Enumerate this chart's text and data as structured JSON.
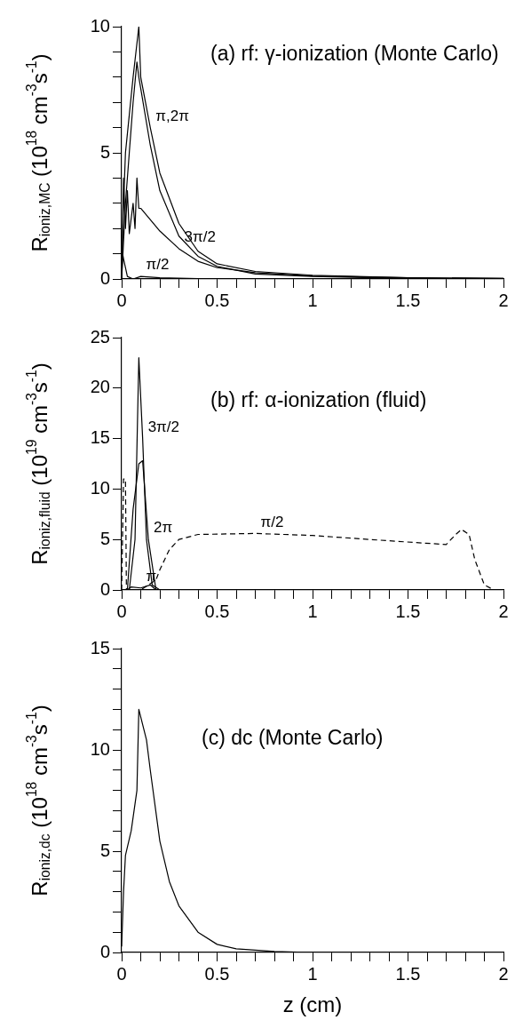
{
  "chart_data": [
    {
      "type": "line",
      "title": "(a) rf: γ-ionization (Monte Carlo)",
      "ylabel": "R$_{ioniz,MC}$ (10$^{18}$ cm$^{-3}$s$^{-1}$)",
      "marker": "none",
      "line_style": "solid",
      "xlim": [
        0,
        2
      ],
      "xticks": [
        0,
        {
          "value": 0.1,
          "label": null
        },
        {
          "value": 0.2,
          "label": null
        },
        {
          "value": 0.3,
          "label": null
        },
        {
          "value": 0.4,
          "label": null
        },
        0.5,
        {
          "value": 0.6,
          "label": null
        },
        {
          "value": 0.7,
          "label": null
        },
        {
          "value": 0.8,
          "label": null
        },
        {
          "value": 0.9,
          "label": null
        },
        1,
        {
          "value": 1.1,
          "label": null
        },
        {
          "value": 1.2,
          "label": null
        },
        {
          "value": 1.3,
          "label": null
        },
        {
          "value": 1.4,
          "label": null
        },
        1.5,
        {
          "value": 1.6,
          "label": null
        },
        {
          "value": 1.7,
          "label": null
        },
        {
          "value": 1.8,
          "label": null
        },
        {
          "value": 1.9,
          "label": null
        },
        2
      ],
      "ylim": [
        0,
        10
      ],
      "yticks": [
        0,
        {
          "value": 1,
          "label": null
        },
        {
          "value": 2,
          "label": null
        },
        {
          "value": 3,
          "label": null
        },
        {
          "value": 4,
          "label": null
        },
        5,
        {
          "value": 6,
          "label": null
        },
        {
          "value": 7,
          "label": null
        },
        {
          "value": 8,
          "label": null
        },
        {
          "value": 9,
          "label": null
        },
        10
      ],
      "series": [
        {
          "color": "#000000",
          "x": [
            0,
            0.01,
            0.02,
            0.04,
            0.06,
            0.09,
            0.1,
            0.15,
            0.2,
            0.3,
            0.4,
            0.5,
            0.7,
            1,
            1.5,
            2
          ],
          "values": [
            0,
            3,
            5,
            6.5,
            8,
            10,
            8,
            6,
            4.2,
            2.2,
            1.1,
            0.6,
            0.3,
            0.15,
            0.05,
            0.02
          ]
        },
        {
          "color": "#000000",
          "x": [
            0,
            0.02,
            0.04,
            0.06,
            0.08,
            0.09,
            0.15,
            0.2,
            0.3,
            0.4,
            0.5,
            0.7,
            1,
            1.5,
            2
          ],
          "values": [
            0,
            3,
            5,
            7,
            8.6,
            8,
            5.3,
            3.5,
            1.7,
            0.9,
            0.5,
            0.2,
            0.1,
            0.02,
            0
          ]
        },
        {
          "color": "#000000",
          "x": [
            0,
            0.01,
            0.02,
            0.03,
            0.04,
            0.06,
            0.07,
            0.08,
            0.09,
            0.1,
            0.2,
            0.3,
            0.4,
            0.5,
            0.7,
            1,
            1.5,
            2
          ],
          "values": [
            0,
            4,
            2,
            3.5,
            1.8,
            3,
            2,
            4,
            2.8,
            2.8,
            1.9,
            1.2,
            0.7,
            0.45,
            0.25,
            0.12,
            0.05,
            0.02
          ]
        },
        {
          "color": "#000000",
          "x": [
            0,
            0.005,
            0.01,
            0.03,
            0.06,
            0.1,
            0.2,
            0.5
          ],
          "values": [
            0,
            1,
            0.8,
            0.1,
            0,
            0.1,
            0.05,
            0
          ]
        }
      ],
      "annotations": [
        {
          "text": "π,2π",
          "x": 0.15,
          "y": 6
        },
        {
          "text": "3π/2",
          "x": 0.3,
          "y": 1.2
        },
        {
          "text": "π/2",
          "x": 0.1,
          "y": 0.1
        }
      ]
    },
    {
      "type": "line",
      "title": "(b) rf: α-ionization (fluid)",
      "ylabel": "R$_{ioniz,fluid}$ (10$^{19}$ cm$^{-3}$s$^{-1}$)",
      "marker": "none",
      "xlim": [
        0,
        2
      ],
      "xticks": [
        0,
        {
          "value": 0.1,
          "label": null
        },
        {
          "value": 0.2,
          "label": null
        },
        {
          "value": 0.3,
          "label": null
        },
        {
          "value": 0.4,
          "label": null
        },
        0.5,
        {
          "value": 0.6,
          "label": null
        },
        {
          "value": 0.7,
          "label": null
        },
        {
          "value": 0.8,
          "label": null
        },
        {
          "value": 0.9,
          "label": null
        },
        1,
        {
          "value": 1.1,
          "label": null
        },
        {
          "value": 1.2,
          "label": null
        },
        {
          "value": 1.3,
          "label": null
        },
        {
          "value": 1.4,
          "label": null
        },
        1.5,
        {
          "value": 1.6,
          "label": null
        },
        {
          "value": 1.7,
          "label": null
        },
        {
          "value": 1.8,
          "label": null
        },
        {
          "value": 1.9,
          "label": null
        },
        2
      ],
      "ylim": [
        0,
        25
      ],
      "yticks": [
        0,
        5,
        10,
        15,
        20,
        25
      ],
      "series": [
        {
          "color": "#000000",
          "line_style": "solid",
          "x": [
            0,
            0.04,
            0.07,
            0.09,
            0.11,
            0.13,
            0.16,
            0.2
          ],
          "values": [
            0,
            0,
            5,
            23,
            15,
            5,
            0.5,
            0
          ]
        },
        {
          "color": "#000000",
          "line_style": "solid",
          "x": [
            0.03,
            0.06,
            0.09,
            0.11,
            0.14,
            0.18
          ],
          "values": [
            0,
            8,
            12.5,
            12.8,
            5,
            0
          ]
        },
        {
          "color": "#000000",
          "line_style": "dashed",
          "x": [
            0,
            0.01,
            0.02,
            0.025,
            0.1,
            0.18,
            0.2,
            0.25,
            0.3,
            0.4,
            0.7,
            1,
            1.3,
            1.7,
            1.75,
            1.78,
            1.82,
            1.85,
            1.9,
            1.95
          ],
          "values": [
            0,
            11,
            11,
            0,
            0,
            1,
            2,
            4,
            5,
            5.5,
            5.6,
            5.4,
            5,
            4.5,
            5.5,
            6,
            5.5,
            3,
            0.5,
            0
          ]
        },
        {
          "color": "#000000",
          "line_style": "solid",
          "x": [
            0.03,
            0.05,
            0.1,
            0.15,
            0.18
          ],
          "values": [
            0,
            0.3,
            0.2,
            0.5,
            0
          ]
        }
      ],
      "annotations": [
        {
          "text": "3π/2",
          "x": 0.11,
          "y": 15
        },
        {
          "text": "2π",
          "x": 0.14,
          "y": 5
        },
        {
          "text": "π/2",
          "x": 0.7,
          "y": 5.6
        },
        {
          "text": "π",
          "x": 0.1,
          "y": 0.2
        }
      ]
    },
    {
      "type": "line",
      "title": "(c) dc (Monte Carlo)",
      "xlabel": "z (cm)",
      "ylabel": "R$_{ioniz,dc}$ (10$^{18}$ cm$^{-3}$s$^{-1}$)",
      "marker": "none",
      "line_style": "solid",
      "xlim": [
        0,
        2
      ],
      "xticks": [
        0,
        {
          "value": 0.1,
          "label": null
        },
        {
          "value": 0.2,
          "label": null
        },
        {
          "value": 0.3,
          "label": null
        },
        {
          "value": 0.4,
          "label": null
        },
        0.5,
        {
          "value": 0.6,
          "label": null
        },
        {
          "value": 0.7,
          "label": null
        },
        {
          "value": 0.8,
          "label": null
        },
        {
          "value": 0.9,
          "label": null
        },
        1,
        {
          "value": 1.1,
          "label": null
        },
        {
          "value": 1.2,
          "label": null
        },
        {
          "value": 1.3,
          "label": null
        },
        {
          "value": 1.4,
          "label": null
        },
        1.5,
        {
          "value": 1.6,
          "label": null
        },
        {
          "value": 1.7,
          "label": null
        },
        {
          "value": 1.8,
          "label": null
        },
        {
          "value": 1.9,
          "label": null
        },
        2
      ],
      "ylim": [
        0,
        15
      ],
      "yticks": [
        0,
        {
          "value": 1,
          "label": null
        },
        {
          "value": 2,
          "label": null
        },
        {
          "value": 3,
          "label": null
        },
        {
          "value": 4,
          "label": null
        },
        5,
        {
          "value": 6,
          "label": null
        },
        {
          "value": 7,
          "label": null
        },
        {
          "value": 8,
          "label": null
        },
        {
          "value": 9,
          "label": null
        },
        10,
        {
          "value": 11,
          "label": null
        },
        {
          "value": 12,
          "label": null
        },
        {
          "value": 13,
          "label": null
        },
        {
          "value": 14,
          "label": null
        },
        15
      ],
      "series": [
        {
          "color": "#000000",
          "x": [
            0,
            0.01,
            0.02,
            0.05,
            0.08,
            0.09,
            0.13,
            0.15,
            0.2,
            0.25,
            0.3,
            0.4,
            0.5,
            0.6,
            0.8,
            1,
            2
          ],
          "values": [
            0.3,
            3,
            4.8,
            6,
            8,
            12,
            10.5,
            9,
            5.5,
            3.5,
            2.3,
            1,
            0.4,
            0.18,
            0.05,
            0,
            0
          ]
        }
      ]
    }
  ]
}
